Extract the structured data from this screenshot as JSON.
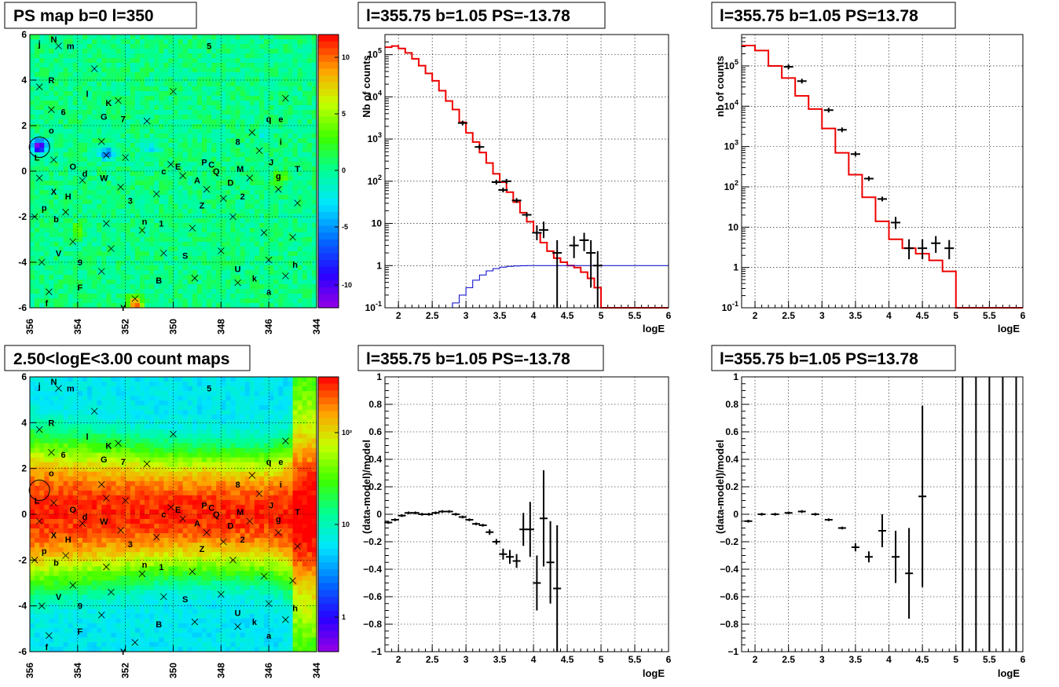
{
  "titles": {
    "ps_map": "PS map b=0 l=350",
    "count_map": "2.50<logE<3.00 count maps",
    "spec_top_mid": "l=355.75 b=1.05 PS=-13.78",
    "spec_top_right": "l=355.75 b=1.05 PS=13.78",
    "res_bot_mid": "l=355.75 b=1.05 PS=-13.78",
    "res_bot_right": "l=355.75 b=1.05 PS=13.78"
  },
  "labels": {
    "xlabel_logE": "logE",
    "ylabel_counts_mid": "Nb of counts",
    "ylabel_counts_right": "nb of counts",
    "ylabel_resid": "(data-model)/model"
  },
  "chart_data": [
    {
      "type": "heatmap",
      "id": "ps_map",
      "title": "PS map b=0 l=350",
      "xlim": [
        356,
        344
      ],
      "ylim": [
        -6,
        6
      ],
      "x_ticks": [
        "356",
        "354",
        "352",
        "350",
        "348",
        "346",
        "344"
      ],
      "y_ticks": [
        "-6",
        "-4",
        "-2",
        "0",
        "2",
        "4",
        "6"
      ],
      "colorbar": {
        "range": [
          -12,
          12
        ],
        "ticks": [
          "10",
          "5",
          "0",
          "-5",
          "-10"
        ]
      },
      "highlight": {
        "l": 355.6,
        "b": 1.05,
        "value": -13.78
      },
      "hotspots": [
        {
          "l": 355.6,
          "b": 1.1,
          "value": -12
        },
        {
          "l": 352.8,
          "b": 0.8,
          "value": -6
        },
        {
          "l": 351.0,
          "b": 1.0,
          "value": -3
        },
        {
          "l": 351.6,
          "b": -5.8,
          "value": 11
        },
        {
          "l": 345.5,
          "b": -0.3,
          "value": 4
        },
        {
          "l": 354.0,
          "b": -2.6,
          "value": 4
        },
        {
          "l": 346.2,
          "b": 1.6,
          "value": -2
        }
      ],
      "gridlines": true
    },
    {
      "type": "heatmap",
      "id": "count_map",
      "title": "2.50<logE<3.00 count maps",
      "xlim": [
        356,
        344
      ],
      "ylim": [
        -6,
        6
      ],
      "x_ticks": [
        "356",
        "354",
        "352",
        "350",
        "348",
        "346",
        "344"
      ],
      "y_ticks": [
        "-6",
        "-4",
        "-2",
        "0",
        "2",
        "4",
        "6"
      ],
      "colorbar": {
        "scale": "log",
        "range": [
          0.5,
          400
        ],
        "ticks": [
          "10²",
          "10",
          "1"
        ]
      },
      "highlight": {
        "l": 355.6,
        "b": 1.05
      },
      "gridlines": true
    },
    {
      "type": "line",
      "id": "spec_top_mid",
      "title": "l=355.75 b=1.05 PS=-13.78",
      "xlabel": "logE",
      "ylabel": "Nb of counts",
      "xlim": [
        1.8,
        6
      ],
      "ylim": [
        0.1,
        300000
      ],
      "yscale": "log",
      "x_ticks": [
        "2",
        "2.5",
        "3",
        "3.5",
        "4",
        "4.5",
        "5",
        "5.5",
        "6"
      ],
      "y_ticks": [
        "10^-1",
        "1",
        "10",
        "10^2",
        "10^3",
        "10^4",
        "10^5"
      ],
      "series": [
        {
          "kind": "model",
          "color": "#ee0000",
          "step_edges": [
            1.8,
            1.9,
            2.0,
            2.1,
            2.2,
            2.3,
            2.4,
            2.5,
            2.6,
            2.7,
            2.8,
            2.9,
            3.0,
            3.1,
            3.2,
            3.3,
            3.4,
            3.5,
            3.6,
            3.7,
            3.8,
            3.9,
            4.0,
            4.1,
            4.2,
            4.3,
            4.4,
            4.5,
            4.6,
            4.7,
            4.8,
            4.9,
            5.0,
            6.0
          ],
          "values": [
            150000,
            160000,
            140000,
            110000,
            80000,
            55000,
            36000,
            24000,
            14000,
            8000,
            5000,
            2500,
            1400,
            850,
            480,
            270,
            150,
            95,
            55,
            32,
            18,
            11,
            6,
            3.5,
            2.2,
            1.5,
            1.2,
            1.0,
            0.9,
            0.7,
            0.5,
            0.3,
            0.1
          ]
        },
        {
          "kind": "signal",
          "color": "#0000cc",
          "step_edges": [
            1.8,
            2.8,
            2.9,
            3.0,
            3.1,
            3.2,
            3.3,
            3.4,
            3.5,
            3.6,
            3.7,
            3.8,
            3.9,
            4.0,
            4.1,
            6.0
          ],
          "values": [
            0.1,
            0.13,
            0.2,
            0.3,
            0.45,
            0.6,
            0.75,
            0.85,
            0.92,
            0.96,
            0.98,
            0.99,
            1.0,
            1.0,
            1.0
          ]
        },
        {
          "kind": "data",
          "color": "#000000",
          "points": [
            {
              "x": 2.95,
              "y": 2400
            },
            {
              "x": 3.2,
              "y": 650
            },
            {
              "x": 3.45,
              "y": 95
            },
            {
              "x": 3.55,
              "y": 62
            },
            {
              "x": 3.6,
              "y": 100
            },
            {
              "x": 3.75,
              "y": 35
            },
            {
              "x": 3.9,
              "y": 16
            },
            {
              "x": 4.05,
              "y": 6,
              "lo": 4,
              "hi": 9
            },
            {
              "x": 4.15,
              "y": 7,
              "lo": 4.5,
              "hi": 11
            },
            {
              "x": 4.35,
              "y": 2,
              "lo": 0.1,
              "hi": 4
            },
            {
              "x": 4.6,
              "y": 3,
              "lo": 1.5,
              "hi": 5
            },
            {
              "x": 4.75,
              "y": 4,
              "lo": 2.2,
              "hi": 6
            },
            {
              "x": 4.85,
              "y": 2,
              "lo": 0.3,
              "hi": 4
            },
            {
              "x": 4.95,
              "y": 1,
              "lo": 0.1,
              "hi": 2.2
            }
          ]
        }
      ],
      "grid": true
    },
    {
      "type": "line",
      "id": "spec_top_right",
      "title": "l=355.75 b=1.05 PS=13.78",
      "xlabel": "logE",
      "ylabel": "nb of counts",
      "xlim": [
        1.8,
        6
      ],
      "ylim": [
        0.1,
        600000
      ],
      "yscale": "log",
      "x_ticks": [
        "2",
        "2.5",
        "3",
        "3.5",
        "4",
        "4.5",
        "5",
        "5.5",
        "6"
      ],
      "y_ticks": [
        "10^-1",
        "1",
        "10",
        "10^2",
        "10^3",
        "10^4",
        "10^5"
      ],
      "series": [
        {
          "kind": "model",
          "color": "#ee0000",
          "step_edges": [
            1.8,
            2.0,
            2.2,
            2.4,
            2.6,
            2.8,
            3.0,
            3.2,
            3.4,
            3.6,
            3.8,
            4.0,
            4.2,
            4.4,
            4.6,
            4.8,
            5.0,
            6.0
          ],
          "values": [
            320000,
            240000,
            100000,
            50000,
            18000,
            8500,
            2800,
            700,
            200,
            55,
            14,
            5,
            3,
            2.2,
            1.5,
            0.8,
            0.1
          ]
        },
        {
          "kind": "data",
          "color": "#000000",
          "points": [
            {
              "x": 2.5,
              "y": 95000
            },
            {
              "x": 2.7,
              "y": 42000
            },
            {
              "x": 3.1,
              "y": 8000
            },
            {
              "x": 3.3,
              "y": 2600
            },
            {
              "x": 3.5,
              "y": 650
            },
            {
              "x": 3.7,
              "y": 160
            },
            {
              "x": 3.9,
              "y": 50
            },
            {
              "x": 4.1,
              "y": 13,
              "lo": 9,
              "hi": 18
            },
            {
              "x": 4.3,
              "y": 3,
              "lo": 1.6,
              "hi": 5
            },
            {
              "x": 4.5,
              "y": 3,
              "lo": 1.6,
              "hi": 5
            },
            {
              "x": 4.7,
              "y": 4,
              "lo": 2.3,
              "hi": 6
            },
            {
              "x": 4.9,
              "y": 3,
              "lo": 1.6,
              "hi": 4.8
            }
          ]
        }
      ],
      "grid": true
    },
    {
      "type": "scatter",
      "id": "res_bot_mid",
      "title": "l=355.75 b=1.05 PS=-13.78",
      "xlabel": "logE",
      "ylabel": "(data-model)/model",
      "xlim": [
        1.8,
        6
      ],
      "ylim": [
        -1,
        1
      ],
      "x_ticks": [
        "2",
        "2.5",
        "3",
        "3.5",
        "4",
        "4.5",
        "5",
        "5.5",
        "6"
      ],
      "y_ticks": [
        "-1",
        "-0.8",
        "-0.6",
        "-0.4",
        "-0.2",
        "0",
        "0.2",
        "0.4",
        "0.6",
        "0.8",
        "1"
      ],
      "points": [
        {
          "x": 1.85,
          "y": -0.06,
          "e": 0.01
        },
        {
          "x": 1.95,
          "y": -0.04,
          "e": 0.01
        },
        {
          "x": 2.05,
          "y": -0.01,
          "e": 0.01
        },
        {
          "x": 2.15,
          "y": 0.01,
          "e": 0.01
        },
        {
          "x": 2.25,
          "y": 0.01,
          "e": 0.01
        },
        {
          "x": 2.35,
          "y": 0.0,
          "e": 0.01
        },
        {
          "x": 2.45,
          "y": 0.0,
          "e": 0.01
        },
        {
          "x": 2.55,
          "y": 0.01,
          "e": 0.01
        },
        {
          "x": 2.65,
          "y": 0.02,
          "e": 0.01
        },
        {
          "x": 2.75,
          "y": 0.02,
          "e": 0.01
        },
        {
          "x": 2.85,
          "y": 0.0,
          "e": 0.01
        },
        {
          "x": 2.95,
          "y": -0.02,
          "e": 0.01
        },
        {
          "x": 3.05,
          "y": -0.04,
          "e": 0.01
        },
        {
          "x": 3.15,
          "y": -0.07,
          "e": 0.01
        },
        {
          "x": 3.25,
          "y": -0.08,
          "e": 0.01
        },
        {
          "x": 3.35,
          "y": -0.13,
          "e": 0.02
        },
        {
          "x": 3.45,
          "y": -0.2,
          "e": 0.02
        },
        {
          "x": 3.55,
          "y": -0.29,
          "e": 0.04
        },
        {
          "x": 3.65,
          "y": -0.31,
          "e": 0.05
        },
        {
          "x": 3.75,
          "y": -0.34,
          "e": 0.05
        },
        {
          "x": 3.85,
          "y": -0.11,
          "e": 0.12
        },
        {
          "x": 3.95,
          "y": -0.11,
          "e": 0.2
        },
        {
          "x": 4.05,
          "y": -0.5,
          "e": 0.2
        },
        {
          "x": 4.15,
          "y": -0.03,
          "e": 0.35
        },
        {
          "x": 4.25,
          "y": -0.35,
          "e": 0.3
        },
        {
          "x": 4.35,
          "y": -0.54,
          "e": 0.46
        }
      ],
      "grid": true
    },
    {
      "type": "scatter",
      "id": "res_bot_right",
      "title": "l=355.75 b=1.05 PS=13.78",
      "xlabel": "logE",
      "ylabel": "(data-model)/model",
      "xlim": [
        1.8,
        6
      ],
      "ylim": [
        -1,
        1
      ],
      "x_ticks": [
        "2",
        "2.5",
        "3",
        "3.5",
        "4",
        "4.5",
        "5",
        "5.5",
        "6"
      ],
      "y_ticks": [
        "-1",
        "-0.8",
        "-0.6",
        "-0.4",
        "-0.2",
        "0",
        "0.2",
        "0.4",
        "0.6",
        "0.8",
        "1"
      ],
      "points": [
        {
          "x": 1.9,
          "y": -0.05,
          "e": 0.01
        },
        {
          "x": 2.1,
          "y": 0.0,
          "e": 0.01
        },
        {
          "x": 2.3,
          "y": 0.0,
          "e": 0.01
        },
        {
          "x": 2.5,
          "y": 0.01,
          "e": 0.01
        },
        {
          "x": 2.7,
          "y": 0.02,
          "e": 0.01
        },
        {
          "x": 2.9,
          "y": 0.0,
          "e": 0.01
        },
        {
          "x": 3.1,
          "y": -0.04,
          "e": 0.01
        },
        {
          "x": 3.3,
          "y": -0.1,
          "e": 0.01
        },
        {
          "x": 3.5,
          "y": -0.24,
          "e": 0.03
        },
        {
          "x": 3.7,
          "y": -0.31,
          "e": 0.04
        },
        {
          "x": 3.9,
          "y": -0.12,
          "e": 0.12
        },
        {
          "x": 4.1,
          "y": -0.31,
          "e": 0.19
        },
        {
          "x": 4.3,
          "y": -0.43,
          "e": 0.33
        },
        {
          "x": 4.5,
          "y": 0.13,
          "e": 0.66
        }
      ],
      "full_range_bars_x": [
        5.1,
        5.3,
        5.5,
        5.7,
        5.9
      ],
      "grid": true
    }
  ],
  "sources": [
    {
      "name": "j",
      "l": 355.6,
      "b": 5.6
    },
    {
      "name": "N",
      "l": 355.0,
      "b": 5.8
    },
    {
      "name": "m",
      "l": 354.3,
      "b": 5.5
    },
    {
      "name": "5",
      "l": 348.5,
      "b": 5.5
    },
    {
      "name": "R",
      "l": 355.1,
      "b": 4.0
    },
    {
      "name": "l",
      "l": 353.6,
      "b": 3.4
    },
    {
      "name": "K",
      "l": 352.7,
      "b": 3.0
    },
    {
      "name": "6",
      "l": 354.6,
      "b": 2.6
    },
    {
      "name": "G",
      "l": 352.9,
      "b": 2.4
    },
    {
      "name": "7",
      "l": 352.1,
      "b": 2.3
    },
    {
      "name": "q",
      "l": 346.0,
      "b": 2.3
    },
    {
      "name": "e",
      "l": 345.5,
      "b": 2.3
    },
    {
      "name": "o",
      "l": 355.1,
      "b": 1.8
    },
    {
      "name": "8",
      "l": 347.3,
      "b": 1.3
    },
    {
      "name": "i",
      "l": 345.5,
      "b": 1.3
    },
    {
      "name": "L",
      "l": 355.7,
      "b": 0.6
    },
    {
      "name": "J",
      "l": 345.9,
      "b": 0.4
    },
    {
      "name": "P",
      "l": 348.7,
      "b": 0.4
    },
    {
      "name": "C",
      "l": 348.4,
      "b": 0.3
    },
    {
      "name": "E",
      "l": 349.8,
      "b": 0.2
    },
    {
      "name": "O",
      "l": 354.2,
      "b": 0.2
    },
    {
      "name": "T",
      "l": 344.8,
      "b": 0.1
    },
    {
      "name": "M",
      "l": 347.2,
      "b": 0.1
    },
    {
      "name": "Q",
      "l": 348.2,
      "b": 0.0
    },
    {
      "name": "c",
      "l": 350.4,
      "b": 0.0
    },
    {
      "name": "d",
      "l": 353.7,
      "b": -0.1
    },
    {
      "name": "g",
      "l": 345.6,
      "b": -0.2
    },
    {
      "name": "W",
      "l": 352.9,
      "b": -0.3
    },
    {
      "name": "A",
      "l": 349.0,
      "b": -0.4
    },
    {
      "name": "D",
      "l": 347.6,
      "b": -0.5
    },
    {
      "name": "X",
      "l": 355.0,
      "b": -0.9
    },
    {
      "name": "H",
      "l": 354.4,
      "b": -1.1
    },
    {
      "name": "2",
      "l": 347.1,
      "b": -1.1
    },
    {
      "name": "3",
      "l": 351.8,
      "b": -1.3
    },
    {
      "name": "Z",
      "l": 348.8,
      "b": -1.5
    },
    {
      "name": "p",
      "l": 355.4,
      "b": -1.6
    },
    {
      "name": "b",
      "l": 354.9,
      "b": -2.1
    },
    {
      "name": "n",
      "l": 351.2,
      "b": -2.2
    },
    {
      "name": "1",
      "l": 350.5,
      "b": -2.3
    },
    {
      "name": "V",
      "l": 354.8,
      "b": -3.6
    },
    {
      "name": "S",
      "l": 349.5,
      "b": -3.7
    },
    {
      "name": "9",
      "l": 353.9,
      "b": -4.0
    },
    {
      "name": "U",
      "l": 347.3,
      "b": -4.3
    },
    {
      "name": "h",
      "l": 344.9,
      "b": -4.1
    },
    {
      "name": "k",
      "l": 346.6,
      "b": -4.7
    },
    {
      "name": "B",
      "l": 350.6,
      "b": -4.8
    },
    {
      "name": "F",
      "l": 353.9,
      "b": -5.1
    },
    {
      "name": "a",
      "l": 346.0,
      "b": -5.3
    },
    {
      "name": "f",
      "l": 355.3,
      "b": -5.8
    },
    {
      "name": "Y",
      "l": 352.1,
      "b": -6.0
    }
  ],
  "crosses": [
    {
      "l": 354.8,
      "b": 5.5
    },
    {
      "l": 353.3,
      "b": 4.5
    },
    {
      "l": 355.6,
      "b": 3.7
    },
    {
      "l": 350.0,
      "b": 3.5
    },
    {
      "l": 345.3,
      "b": 3.2
    },
    {
      "l": 352.3,
      "b": 3.1
    },
    {
      "l": 355.1,
      "b": 2.7
    },
    {
      "l": 351.1,
      "b": 2.2
    },
    {
      "l": 353.0,
      "b": 1.3
    },
    {
      "l": 352.8,
      "b": 0.7
    },
    {
      "l": 346.7,
      "b": 1.7
    },
    {
      "l": 346.4,
      "b": 0.9
    },
    {
      "l": 355.0,
      "b": 0.5
    },
    {
      "l": 352.0,
      "b": 0.6
    },
    {
      "l": 350.1,
      "b": 0.3
    },
    {
      "l": 355.6,
      "b": -0.3
    },
    {
      "l": 353.8,
      "b": -0.4
    },
    {
      "l": 352.2,
      "b": -0.7
    },
    {
      "l": 350.7,
      "b": -1.0
    },
    {
      "l": 349.6,
      "b": -0.2
    },
    {
      "l": 348.6,
      "b": -0.8
    },
    {
      "l": 347.9,
      "b": -1.2
    },
    {
      "l": 346.8,
      "b": -0.3
    },
    {
      "l": 345.6,
      "b": -0.8
    },
    {
      "l": 344.8,
      "b": -1.4
    },
    {
      "l": 355.8,
      "b": -2.0
    },
    {
      "l": 354.5,
      "b": -1.8
    },
    {
      "l": 352.8,
      "b": -2.3
    },
    {
      "l": 351.3,
      "b": -2.6
    },
    {
      "l": 349.2,
      "b": -2.5
    },
    {
      "l": 347.5,
      "b": -2.0
    },
    {
      "l": 346.2,
      "b": -2.7
    },
    {
      "l": 345.0,
      "b": -2.9
    },
    {
      "l": 354.2,
      "b": -3.1
    },
    {
      "l": 352.6,
      "b": -3.4
    },
    {
      "l": 350.4,
      "b": -3.6
    },
    {
      "l": 348.0,
      "b": -3.5
    },
    {
      "l": 346.0,
      "b": -3.9
    },
    {
      "l": 355.5,
      "b": -4.0
    },
    {
      "l": 353.0,
      "b": -4.4
    },
    {
      "l": 349.1,
      "b": -4.7
    },
    {
      "l": 347.3,
      "b": -4.9
    },
    {
      "l": 345.3,
      "b": -4.6
    },
    {
      "l": 355.2,
      "b": -5.3
    },
    {
      "l": 351.6,
      "b": -5.6
    }
  ]
}
